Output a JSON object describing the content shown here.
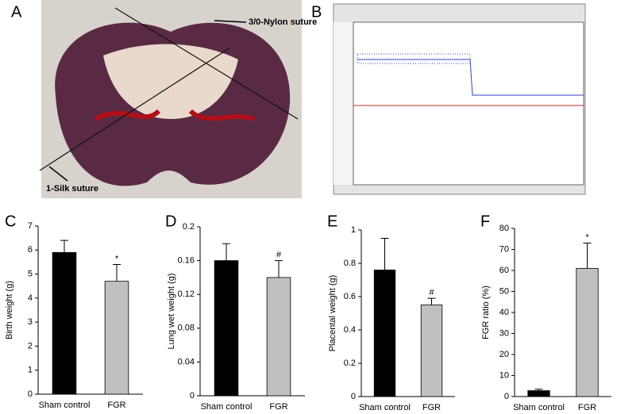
{
  "panels": {
    "a": {
      "label": "A",
      "annotations": [
        "3/0-Nylon suture",
        "1-Silk suture"
      ]
    },
    "b": {
      "label": "B"
    }
  },
  "chart_data": [
    {
      "type": "bar",
      "label": "C",
      "y_label": "Birth weight (g)",
      "categories": [
        "Sham control",
        "FGR"
      ],
      "values": [
        5.9,
        4.7
      ],
      "errors": [
        0.5,
        0.7
      ],
      "colors": [
        "#000000",
        "#c0c0c0"
      ],
      "significance": [
        null,
        "*"
      ],
      "ylim": [
        0,
        7
      ],
      "yticks": [
        0,
        1,
        2,
        3,
        4,
        5,
        6,
        7
      ]
    },
    {
      "type": "bar",
      "label": "D",
      "y_label": "Lung wet weight (g)",
      "categories": [
        "Sham control",
        "FGR"
      ],
      "values": [
        0.16,
        0.14
      ],
      "errors": [
        0.02,
        0.02
      ],
      "colors": [
        "#000000",
        "#c0c0c0"
      ],
      "significance": [
        null,
        "#"
      ],
      "ylim": [
        0,
        0.2
      ],
      "yticks": [
        0,
        0.04,
        0.08,
        0.12,
        0.16,
        0.2
      ]
    },
    {
      "type": "bar",
      "label": "E",
      "y_label": "Placental weight (g)",
      "categories": [
        "Sham control",
        "FGR"
      ],
      "values": [
        0.76,
        0.55
      ],
      "errors": [
        0.19,
        0.04
      ],
      "colors": [
        "#000000",
        "#c0c0c0"
      ],
      "significance": [
        null,
        "#"
      ],
      "ylim": [
        0,
        1
      ],
      "yticks": [
        0,
        0.2,
        0.4,
        0.6,
        0.8,
        1
      ]
    },
    {
      "type": "bar",
      "label": "F",
      "y_label": "FGR ratio (%)",
      "categories": [
        "Sham control",
        "FGR"
      ],
      "values": [
        2.8,
        61
      ],
      "errors": [
        0.7,
        12
      ],
      "colors": [
        "#000000",
        "#c0c0c0"
      ],
      "significance": [
        null,
        "*"
      ],
      "ylim": [
        0,
        80
      ],
      "yticks": [
        0,
        10,
        20,
        30,
        40,
        50,
        60,
        70,
        80
      ]
    }
  ]
}
